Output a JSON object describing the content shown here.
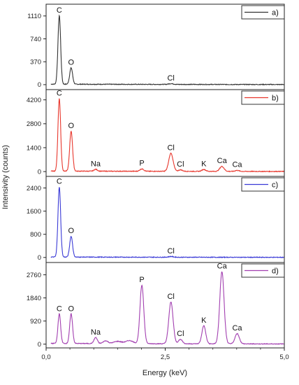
{
  "chart_data": {
    "type": "line",
    "xlabel": "Energy (keV)",
    "ylabel": "Intensivity (counts)",
    "xlim": [
      0,
      5
    ],
    "x_ticks": [
      0,
      2.5,
      5
    ],
    "x_tick_labels": [
      "0,0",
      "2,5",
      "5,0"
    ],
    "panels": [
      {
        "legend": "a)",
        "color": "#333333",
        "ylim": [
          -80,
          1300
        ],
        "y_ticks": [
          0,
          370,
          740,
          1110
        ],
        "y_tick_labels": [
          "0",
          "370",
          "740",
          "1110"
        ],
        "baseline": 8,
        "peaks": [
          {
            "x": 0.277,
            "y": 1110,
            "w": 0.028
          },
          {
            "x": 0.525,
            "y": 265,
            "w": 0.03
          },
          {
            "x": 2.62,
            "y": 12,
            "w": 0.05
          }
        ],
        "labels": [
          {
            "text": "C",
            "x": 0.277,
            "y": 1110
          },
          {
            "text": "O",
            "x": 0.525,
            "y": 265
          },
          {
            "text": "Cl",
            "x": 2.62,
            "y": 12
          }
        ]
      },
      {
        "legend": "b)",
        "color": "#e8362c",
        "ylim": [
          -200,
          4800
        ],
        "y_ticks": [
          0,
          1400,
          2800,
          4200
        ],
        "y_tick_labels": [
          "0",
          "1400",
          "2800",
          "4200"
        ],
        "baseline": 30,
        "peaks": [
          {
            "x": 0.277,
            "y": 4250,
            "w": 0.028
          },
          {
            "x": 0.525,
            "y": 2350,
            "w": 0.03
          },
          {
            "x": 1.04,
            "y": 110,
            "w": 0.035
          },
          {
            "x": 2.01,
            "y": 140,
            "w": 0.04
          },
          {
            "x": 2.62,
            "y": 1060,
            "w": 0.045
          },
          {
            "x": 2.82,
            "y": 90,
            "w": 0.04
          },
          {
            "x": 3.31,
            "y": 110,
            "w": 0.04
          },
          {
            "x": 3.69,
            "y": 290,
            "w": 0.045
          },
          {
            "x": 4.01,
            "y": 60,
            "w": 0.04
          }
        ],
        "labels": [
          {
            "text": "C",
            "x": 0.277,
            "y": 4250
          },
          {
            "text": "O",
            "x": 0.525,
            "y": 2350
          },
          {
            "text": "Na",
            "x": 1.04,
            "y": 110
          },
          {
            "text": "P",
            "x": 2.01,
            "y": 140
          },
          {
            "text": "Cl",
            "x": 2.62,
            "y": 1060
          },
          {
            "text": "Cl",
            "x": 2.82,
            "y": 90
          },
          {
            "text": "K",
            "x": 3.31,
            "y": 110
          },
          {
            "text": "Ca",
            "x": 3.69,
            "y": 290
          },
          {
            "text": "Ca",
            "x": 4.01,
            "y": 60
          }
        ]
      },
      {
        "legend": "c)",
        "color": "#3a3ad6",
        "ylim": [
          -150,
          2800
        ],
        "y_ticks": [
          0,
          800,
          1600,
          2400
        ],
        "y_tick_labels": [
          "0",
          "800",
          "1600",
          "2400"
        ],
        "baseline": 15,
        "peaks": [
          {
            "x": 0.277,
            "y": 2420,
            "w": 0.028
          },
          {
            "x": 0.525,
            "y": 720,
            "w": 0.03
          },
          {
            "x": 2.62,
            "y": 25,
            "w": 0.05
          }
        ],
        "labels": [
          {
            "text": "C",
            "x": 0.277,
            "y": 2420
          },
          {
            "text": "O",
            "x": 0.525,
            "y": 720
          },
          {
            "text": "Cl",
            "x": 2.62,
            "y": 25
          }
        ]
      },
      {
        "legend": "d)",
        "color": "#a23fb0",
        "ylim": [
          -150,
          3250
        ],
        "y_ticks": [
          0,
          920,
          1840,
          2760
        ],
        "y_tick_labels": [
          "0",
          "920",
          "1840",
          "2760"
        ],
        "baseline": 30,
        "peaks": [
          {
            "x": 0.277,
            "y": 1180,
            "w": 0.028
          },
          {
            "x": 0.525,
            "y": 1180,
            "w": 0.03
          },
          {
            "x": 1.04,
            "y": 240,
            "w": 0.035
          },
          {
            "x": 1.25,
            "y": 110,
            "w": 0.05
          },
          {
            "x": 1.5,
            "y": 90,
            "w": 0.08
          },
          {
            "x": 1.75,
            "y": 120,
            "w": 0.08
          },
          {
            "x": 2.01,
            "y": 2330,
            "w": 0.04
          },
          {
            "x": 2.62,
            "y": 1660,
            "w": 0.045
          },
          {
            "x": 2.82,
            "y": 180,
            "w": 0.04
          },
          {
            "x": 3.31,
            "y": 720,
            "w": 0.04
          },
          {
            "x": 3.69,
            "y": 2870,
            "w": 0.045
          },
          {
            "x": 4.01,
            "y": 410,
            "w": 0.045
          }
        ],
        "labels": [
          {
            "text": "C",
            "x": 0.277,
            "y": 1180
          },
          {
            "text": "O",
            "x": 0.525,
            "y": 1180
          },
          {
            "text": "Na",
            "x": 1.04,
            "y": 240
          },
          {
            "text": "P",
            "x": 2.01,
            "y": 2330
          },
          {
            "text": "Cl",
            "x": 2.62,
            "y": 1660
          },
          {
            "text": "Cl",
            "x": 2.82,
            "y": 180
          },
          {
            "text": "K",
            "x": 3.31,
            "y": 720
          },
          {
            "text": "Ca",
            "x": 3.69,
            "y": 2870
          },
          {
            "text": "Ca",
            "x": 4.01,
            "y": 410
          }
        ]
      }
    ]
  }
}
